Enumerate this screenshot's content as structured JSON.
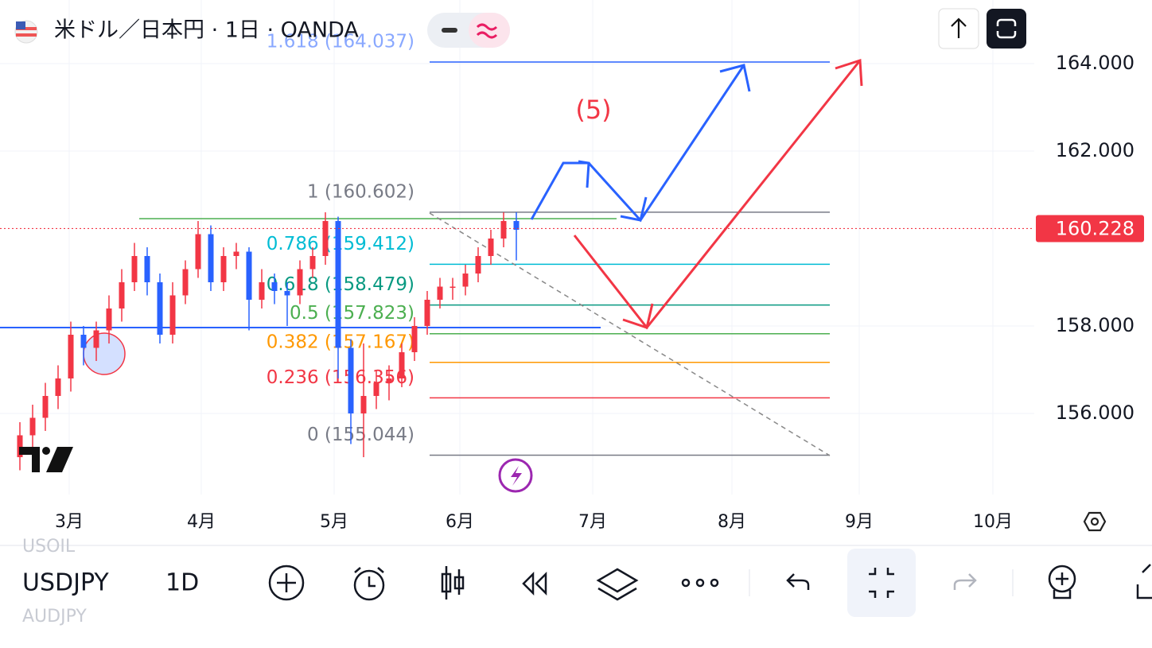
{
  "header": {
    "title": "米ドル／日本円 · 1日 · OANDA"
  },
  "chart_data": {
    "type": "candlestick",
    "open": [
      155.0,
      155.5,
      155.9,
      156.4,
      156.8,
      157.8,
      157.5,
      157.9,
      158.4,
      159.0,
      159.6,
      159.0,
      157.8,
      158.7,
      159.3,
      160.1,
      159.0,
      159.6,
      159.7,
      158.6,
      159.0,
      158.8,
      158.7,
      159.3,
      159.6,
      160.4,
      157.5,
      156.0,
      156.4,
      156.7,
      156.8,
      157.4,
      158.0,
      158.6,
      158.9,
      158.9,
      159.2,
      159.6,
      160.0,
      160.4
    ],
    "high": [
      155.8,
      156.2,
      156.7,
      157.1,
      158.1,
      158.0,
      158.1,
      158.7,
      159.3,
      159.9,
      159.8,
      159.2,
      159.0,
      159.5,
      160.4,
      160.3,
      159.8,
      159.9,
      159.8,
      159.3,
      159.2,
      159.0,
      159.5,
      159.8,
      160.6,
      160.5,
      157.7,
      157.6,
      157.0,
      157.1,
      157.6,
      158.2,
      158.8,
      159.1,
      159.1,
      159.4,
      159.8,
      160.2,
      160.6,
      160.6
    ],
    "low": [
      154.7,
      155.2,
      155.6,
      156.1,
      156.5,
      157.1,
      157.2,
      157.6,
      158.1,
      158.8,
      158.7,
      157.6,
      157.6,
      158.5,
      159.1,
      158.8,
      158.8,
      159.3,
      157.9,
      158.4,
      158.5,
      158.0,
      158.5,
      159.1,
      159.4,
      156.8,
      155.3,
      155.0,
      156.1,
      156.3,
      156.6,
      157.2,
      157.8,
      158.4,
      158.6,
      158.7,
      159.0,
      159.4,
      159.8,
      159.5
    ],
    "close": [
      155.5,
      155.9,
      156.4,
      156.8,
      157.8,
      157.5,
      157.9,
      158.4,
      159.0,
      159.6,
      159.0,
      157.8,
      158.7,
      159.3,
      160.1,
      159.0,
      159.6,
      159.7,
      158.6,
      159.0,
      158.8,
      158.7,
      159.3,
      159.6,
      160.4,
      157.5,
      156.0,
      156.4,
      156.7,
      156.8,
      157.4,
      158.0,
      158.6,
      158.9,
      158.9,
      159.2,
      159.6,
      160.0,
      160.4,
      160.2
    ],
    "up_color": "#f23645",
    "down_color": "#2962ff",
    "ylim": [
      154.145,
      165.455
    ],
    "yticks": [
      {
        "value": 164,
        "label": "164.000"
      },
      {
        "value": 162,
        "label": "162.000"
      },
      {
        "value": 158,
        "label": "158.000"
      },
      {
        "value": 156,
        "label": "156.000"
      }
    ],
    "last_price": 160.228,
    "x_labels": [
      "3月",
      "4月",
      "5月",
      "6月",
      "7月",
      "8月",
      "9月",
      "10月"
    ],
    "fib_levels": [
      {
        "label": "1.618 (164.037)",
        "price": 164.037,
        "color": "#2962ff"
      },
      {
        "label": "1 (160.602)",
        "price": 160.602,
        "color": "#787b86"
      },
      {
        "label": "0.786 (159.412)",
        "price": 159.412,
        "color": "#00bcd4"
      },
      {
        "label": "0.618 (158.479)",
        "price": 158.479,
        "color": "#089981"
      },
      {
        "label": "0.5 (157.823)",
        "price": 157.823,
        "color": "#4caf50"
      },
      {
        "label": "0.382 (157.167)",
        "price": 157.167,
        "color": "#ff9800"
      },
      {
        "label": "0.236 (156.356)",
        "price": 156.356,
        "color": "#f23645"
      },
      {
        "label": "0 (155.044)",
        "price": 155.044,
        "color": "#787b86"
      }
    ],
    "annotation": "(5)"
  },
  "toolbar": {
    "symbol": "USDJPY",
    "interval": "1D",
    "prev_symbol": "USOIL",
    "next_symbol": "AUDJPY"
  }
}
